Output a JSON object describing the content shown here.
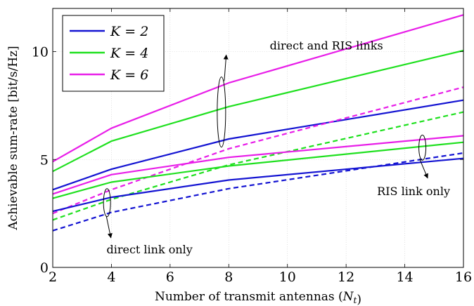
{
  "chart_data": {
    "type": "line",
    "xlabel_prefix": "Number of transmit antennas (",
    "xlabel_var": "N",
    "xlabel_sub": "t",
    "xlabel_suffix": ")",
    "ylabel": "Achievable sum-rate [bit/s/Hz]",
    "xlim": [
      2,
      16
    ],
    "ylim": [
      0,
      12
    ],
    "xticks": [
      2,
      4,
      6,
      8,
      10,
      12,
      14,
      16
    ],
    "yticks": [
      0,
      5,
      10
    ],
    "grid": true,
    "legend_position": "top-left",
    "legend": [
      {
        "label": "K = 2",
        "color": "#1414d2"
      },
      {
        "label": "K = 4",
        "color": "#1fe01f"
      },
      {
        "label": "K = 6",
        "color": "#e81ee8"
      }
    ],
    "series": [
      {
        "group": "direct and RIS links",
        "K": 2,
        "color": "#1414d2",
        "dash": "solid",
        "x": [
          2,
          4,
          8,
          16
        ],
        "y": [
          3.6,
          4.55,
          5.95,
          7.75
        ]
      },
      {
        "group": "direct and RIS links",
        "K": 4,
        "color": "#1fe01f",
        "dash": "solid",
        "x": [
          2,
          4,
          8,
          16
        ],
        "y": [
          4.45,
          5.85,
          7.45,
          10.05
        ]
      },
      {
        "group": "direct and RIS links",
        "K": 6,
        "color": "#e81ee8",
        "dash": "solid",
        "x": [
          2,
          4,
          8,
          16
        ],
        "y": [
          4.9,
          6.45,
          8.55,
          11.7
        ]
      },
      {
        "group": "RIS link only",
        "K": 2,
        "color": "#1414d2",
        "dash": "dashed",
        "x": [
          2,
          4,
          8,
          16
        ],
        "y": [
          1.7,
          2.55,
          3.65,
          5.3
        ]
      },
      {
        "group": "RIS link only",
        "K": 4,
        "color": "#1fe01f",
        "dash": "dashed",
        "x": [
          2,
          4,
          8,
          16
        ],
        "y": [
          2.2,
          3.15,
          4.75,
          7.2
        ]
      },
      {
        "group": "RIS link only",
        "K": 6,
        "color": "#e81ee8",
        "dash": "dashed",
        "x": [
          2,
          4,
          8,
          16
        ],
        "y": [
          2.5,
          3.6,
          5.5,
          8.35
        ]
      },
      {
        "group": "direct link only",
        "K": 2,
        "color": "#1414d2",
        "dash": "solid",
        "x": [
          2,
          4,
          8,
          16
        ],
        "y": [
          2.6,
          3.25,
          4.05,
          5.05
        ]
      },
      {
        "group": "direct link only",
        "K": 4,
        "color": "#1fe01f",
        "dash": "solid",
        "x": [
          2,
          4,
          8,
          16
        ],
        "y": [
          3.2,
          3.95,
          4.7,
          5.8
        ]
      },
      {
        "group": "direct link only",
        "K": 6,
        "color": "#e81ee8",
        "dash": "solid",
        "x": [
          2,
          4,
          8,
          16
        ],
        "y": [
          3.4,
          4.3,
          5.1,
          6.1
        ]
      }
    ],
    "annotations": [
      {
        "text": "direct and RIS links",
        "ellipse": {
          "x": 7.75,
          "y": 7.2
        },
        "text_at": {
          "x": 9.4,
          "y": 10.3
        },
        "anchor": "start"
      },
      {
        "text": "RIS link only",
        "ellipse": {
          "x": 14.6,
          "y": 5.55
        },
        "text_at": {
          "x": 14.3,
          "y": 3.55
        },
        "anchor": "middle"
      },
      {
        "text": "direct link only",
        "ellipse": {
          "x": 3.85,
          "y": 3.0
        },
        "text_at": {
          "x": 5.3,
          "y": 0.85
        },
        "anchor": "middle"
      }
    ]
  }
}
